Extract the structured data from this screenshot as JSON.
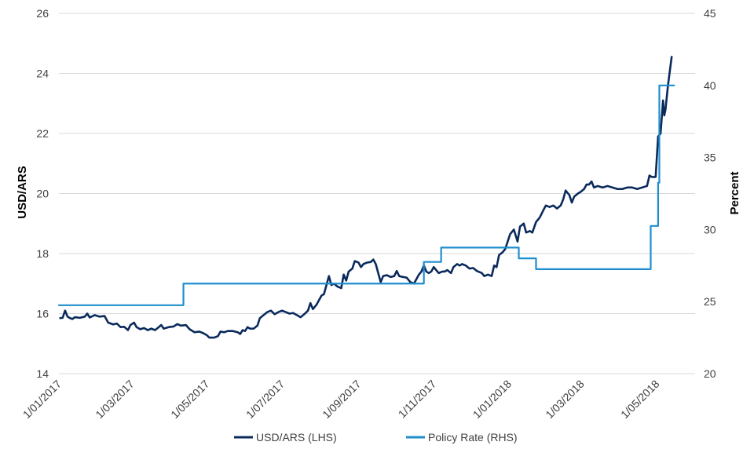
{
  "chart_data": {
    "type": "line",
    "title": "",
    "ylabel_left": "USD/ARS",
    "ylabel_right": "Percent",
    "ylim_left": [
      14,
      26
    ],
    "ylim_right": [
      20,
      45
    ],
    "yticks_left": [
      14,
      16,
      18,
      20,
      22,
      24,
      26
    ],
    "yticks_right": [
      20,
      25,
      30,
      35,
      40,
      45
    ],
    "xlim": [
      "2017-01-01",
      "2018-06-01"
    ],
    "xtick_labels": [
      "1/01/2017",
      "1/03/2017",
      "1/05/2017",
      "1/07/2017",
      "1/09/2017",
      "1/11/2017",
      "1/01/2018",
      "1/03/2018",
      "1/05/2018"
    ],
    "xtick_dates": [
      "2017-01-01",
      "2017-03-01",
      "2017-05-01",
      "2017-07-01",
      "2017-09-01",
      "2017-11-01",
      "2018-01-01",
      "2018-03-01",
      "2018-05-01"
    ],
    "grid": "horizontal",
    "legend_position": "bottom",
    "series": [
      {
        "name": "USD/ARS (LHS)",
        "axis": "left",
        "color": "#0a2a5c",
        "points": [
          [
            "2017-01-02",
            15.85
          ],
          [
            "2017-01-04",
            15.86
          ],
          [
            "2017-01-06",
            16.1
          ],
          [
            "2017-01-08",
            15.9
          ],
          [
            "2017-01-10",
            15.85
          ],
          [
            "2017-01-12",
            15.82
          ],
          [
            "2017-01-14",
            15.88
          ],
          [
            "2017-01-18",
            15.86
          ],
          [
            "2017-01-22",
            15.9
          ],
          [
            "2017-01-24",
            16.0
          ],
          [
            "2017-01-26",
            15.87
          ],
          [
            "2017-01-30",
            15.95
          ],
          [
            "2017-02-03",
            15.9
          ],
          [
            "2017-02-07",
            15.92
          ],
          [
            "2017-02-10",
            15.7
          ],
          [
            "2017-02-14",
            15.64
          ],
          [
            "2017-02-17",
            15.67
          ],
          [
            "2017-02-20",
            15.55
          ],
          [
            "2017-02-23",
            15.56
          ],
          [
            "2017-02-26",
            15.45
          ],
          [
            "2017-02-28",
            15.62
          ],
          [
            "2017-03-03",
            15.7
          ],
          [
            "2017-03-05",
            15.55
          ],
          [
            "2017-03-08",
            15.48
          ],
          [
            "2017-03-11",
            15.52
          ],
          [
            "2017-03-14",
            15.45
          ],
          [
            "2017-03-17",
            15.5
          ],
          [
            "2017-03-20",
            15.45
          ],
          [
            "2017-03-23",
            15.55
          ],
          [
            "2017-03-25",
            15.62
          ],
          [
            "2017-03-27",
            15.5
          ],
          [
            "2017-03-31",
            15.55
          ],
          [
            "2017-04-04",
            15.57
          ],
          [
            "2017-04-07",
            15.65
          ],
          [
            "2017-04-10",
            15.6
          ],
          [
            "2017-04-14",
            15.62
          ],
          [
            "2017-04-17",
            15.48
          ],
          [
            "2017-04-21",
            15.38
          ],
          [
            "2017-04-25",
            15.4
          ],
          [
            "2017-04-28",
            15.35
          ],
          [
            "2017-05-01",
            15.28
          ],
          [
            "2017-05-03",
            15.2
          ],
          [
            "2017-05-07",
            15.2
          ],
          [
            "2017-05-10",
            15.25
          ],
          [
            "2017-05-12",
            15.4
          ],
          [
            "2017-05-15",
            15.38
          ],
          [
            "2017-05-18",
            15.42
          ],
          [
            "2017-05-22",
            15.42
          ],
          [
            "2017-05-26",
            15.38
          ],
          [
            "2017-05-28",
            15.32
          ],
          [
            "2017-05-30",
            15.45
          ],
          [
            "2017-06-01",
            15.42
          ],
          [
            "2017-06-03",
            15.55
          ],
          [
            "2017-06-05",
            15.5
          ],
          [
            "2017-06-08",
            15.5
          ],
          [
            "2017-06-11",
            15.6
          ],
          [
            "2017-06-13",
            15.85
          ],
          [
            "2017-06-16",
            15.95
          ],
          [
            "2017-06-19",
            16.05
          ],
          [
            "2017-06-22",
            16.1
          ],
          [
            "2017-06-25",
            15.98
          ],
          [
            "2017-06-28",
            16.05
          ],
          [
            "2017-07-01",
            16.1
          ],
          [
            "2017-07-04",
            16.05
          ],
          [
            "2017-07-07",
            16.0
          ],
          [
            "2017-07-10",
            16.02
          ],
          [
            "2017-07-13",
            15.95
          ],
          [
            "2017-07-16",
            15.88
          ],
          [
            "2017-07-19",
            15.98
          ],
          [
            "2017-07-22",
            16.1
          ],
          [
            "2017-07-24",
            16.35
          ],
          [
            "2017-07-26",
            16.15
          ],
          [
            "2017-07-29",
            16.3
          ],
          [
            "2017-07-31",
            16.45
          ],
          [
            "2017-08-02",
            16.6
          ],
          [
            "2017-08-04",
            16.65
          ],
          [
            "2017-08-06",
            16.95
          ],
          [
            "2017-08-08",
            17.25
          ],
          [
            "2017-08-10",
            16.95
          ],
          [
            "2017-08-12",
            17.0
          ],
          [
            "2017-08-15",
            16.9
          ],
          [
            "2017-08-18",
            16.85
          ],
          [
            "2017-08-20",
            17.3
          ],
          [
            "2017-08-22",
            17.1
          ],
          [
            "2017-08-24",
            17.4
          ],
          [
            "2017-08-27",
            17.5
          ],
          [
            "2017-08-29",
            17.75
          ],
          [
            "2017-09-01",
            17.7
          ],
          [
            "2017-09-03",
            17.55
          ],
          [
            "2017-09-05",
            17.65
          ],
          [
            "2017-09-08",
            17.7
          ],
          [
            "2017-09-11",
            17.72
          ],
          [
            "2017-09-13",
            17.8
          ],
          [
            "2017-09-15",
            17.65
          ],
          [
            "2017-09-17",
            17.35
          ],
          [
            "2017-09-19",
            17.05
          ],
          [
            "2017-09-21",
            17.25
          ],
          [
            "2017-09-24",
            17.28
          ],
          [
            "2017-09-27",
            17.22
          ],
          [
            "2017-09-30",
            17.25
          ],
          [
            "2017-10-02",
            17.42
          ],
          [
            "2017-10-04",
            17.25
          ],
          [
            "2017-10-07",
            17.22
          ],
          [
            "2017-10-10",
            17.2
          ],
          [
            "2017-10-13",
            17.05
          ],
          [
            "2017-10-16",
            17.0
          ],
          [
            "2017-10-18",
            17.15
          ],
          [
            "2017-10-20",
            17.3
          ],
          [
            "2017-10-22",
            17.4
          ],
          [
            "2017-10-24",
            17.6
          ],
          [
            "2017-10-26",
            17.4
          ],
          [
            "2017-10-28",
            17.35
          ],
          [
            "2017-10-30",
            17.4
          ],
          [
            "2017-11-01",
            17.55
          ],
          [
            "2017-11-03",
            17.45
          ],
          [
            "2017-11-05",
            17.35
          ],
          [
            "2017-11-08",
            17.4
          ],
          [
            "2017-11-10",
            17.4
          ],
          [
            "2017-11-12",
            17.45
          ],
          [
            "2017-11-15",
            17.35
          ],
          [
            "2017-11-17",
            17.55
          ],
          [
            "2017-11-20",
            17.65
          ],
          [
            "2017-11-22",
            17.6
          ],
          [
            "2017-11-24",
            17.65
          ],
          [
            "2017-11-27",
            17.6
          ],
          [
            "2017-11-30",
            17.5
          ],
          [
            "2017-12-03",
            17.52
          ],
          [
            "2017-12-06",
            17.42
          ],
          [
            "2017-12-10",
            17.35
          ],
          [
            "2017-12-12",
            17.25
          ],
          [
            "2017-12-15",
            17.3
          ],
          [
            "2017-12-18",
            17.25
          ],
          [
            "2017-12-20",
            17.6
          ],
          [
            "2017-12-22",
            17.55
          ],
          [
            "2017-12-24",
            17.95
          ],
          [
            "2017-12-27",
            18.05
          ],
          [
            "2017-12-29",
            18.15
          ],
          [
            "2018-01-02",
            18.65
          ],
          [
            "2018-01-05",
            18.8
          ],
          [
            "2018-01-08",
            18.4
          ],
          [
            "2018-01-10",
            18.9
          ],
          [
            "2018-01-13",
            19.0
          ],
          [
            "2018-01-15",
            18.7
          ],
          [
            "2018-01-18",
            18.75
          ],
          [
            "2018-01-20",
            18.7
          ],
          [
            "2018-01-23",
            19.05
          ],
          [
            "2018-01-26",
            19.2
          ],
          [
            "2018-01-29",
            19.45
          ],
          [
            "2018-01-31",
            19.6
          ],
          [
            "2018-02-03",
            19.55
          ],
          [
            "2018-02-06",
            19.6
          ],
          [
            "2018-02-09",
            19.5
          ],
          [
            "2018-02-12",
            19.6
          ],
          [
            "2018-02-14",
            19.8
          ],
          [
            "2018-02-16",
            20.1
          ],
          [
            "2018-02-19",
            19.95
          ],
          [
            "2018-02-21",
            19.7
          ],
          [
            "2018-02-23",
            19.9
          ],
          [
            "2018-02-26",
            20.0
          ],
          [
            "2018-02-28",
            20.05
          ],
          [
            "2018-03-03",
            20.15
          ],
          [
            "2018-03-05",
            20.3
          ],
          [
            "2018-03-07",
            20.3
          ],
          [
            "2018-03-09",
            20.4
          ],
          [
            "2018-03-11",
            20.2
          ],
          [
            "2018-03-14",
            20.25
          ],
          [
            "2018-03-18",
            20.2
          ],
          [
            "2018-03-22",
            20.25
          ],
          [
            "2018-03-26",
            20.2
          ],
          [
            "2018-03-30",
            20.15
          ],
          [
            "2018-04-03",
            20.15
          ],
          [
            "2018-04-07",
            20.2
          ],
          [
            "2018-04-11",
            20.2
          ],
          [
            "2018-04-15",
            20.15
          ],
          [
            "2018-04-19",
            20.2
          ],
          [
            "2018-04-23",
            20.25
          ],
          [
            "2018-04-25",
            20.6
          ],
          [
            "2018-04-27",
            20.55
          ],
          [
            "2018-04-30",
            20.55
          ],
          [
            "2018-05-02",
            21.9
          ],
          [
            "2018-05-04",
            22.0
          ],
          [
            "2018-05-06",
            23.1
          ],
          [
            "2018-05-07",
            22.6
          ],
          [
            "2018-05-08",
            22.8
          ],
          [
            "2018-05-10",
            23.6
          ],
          [
            "2018-05-13",
            24.55
          ]
        ]
      },
      {
        "name": "Policy Rate (RHS)",
        "axis": "right",
        "color": "#1f8ecd",
        "step": true,
        "points": [
          [
            "2017-01-01",
            24.75
          ],
          [
            "2017-04-12",
            24.75
          ],
          [
            "2017-04-12",
            26.25
          ],
          [
            "2017-10-24",
            26.25
          ],
          [
            "2017-10-24",
            27.75
          ],
          [
            "2017-11-07",
            27.75
          ],
          [
            "2017-11-07",
            28.75
          ],
          [
            "2018-01-09",
            28.75
          ],
          [
            "2018-01-09",
            28.0
          ],
          [
            "2018-01-23",
            28.0
          ],
          [
            "2018-01-23",
            27.25
          ],
          [
            "2018-04-26",
            27.25
          ],
          [
            "2018-04-26",
            30.25
          ],
          [
            "2018-05-02",
            30.25
          ],
          [
            "2018-05-02",
            33.25
          ],
          [
            "2018-05-03",
            33.25
          ],
          [
            "2018-05-03",
            40.0
          ],
          [
            "2018-05-15",
            40.0
          ]
        ]
      }
    ]
  }
}
